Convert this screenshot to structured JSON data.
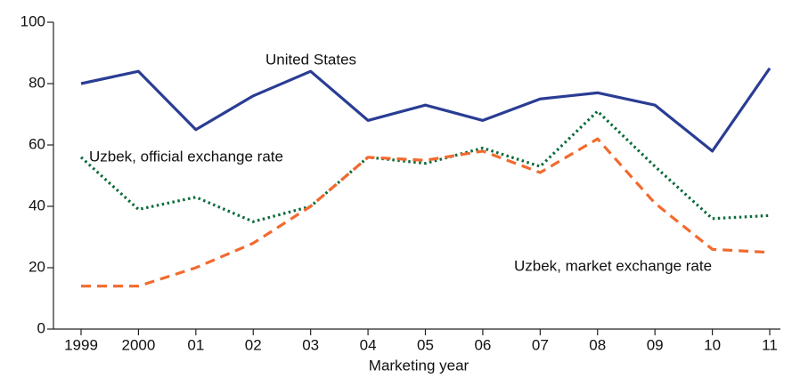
{
  "chart_data": {
    "type": "line",
    "x_label": "Marketing year",
    "categories": [
      "1999",
      "2000",
      "01",
      "02",
      "03",
      "04",
      "05",
      "06",
      "07",
      "08",
      "09",
      "10",
      "11"
    ],
    "series": [
      {
        "name": "United States",
        "color": "#2a3d94",
        "dash": "solid",
        "values": [
          80,
          84,
          65,
          76,
          84,
          68,
          73,
          68,
          75,
          77,
          73,
          58,
          85
        ]
      },
      {
        "name": "Uzbek, official exchange rate",
        "color": "#0b6b3a",
        "dash": "dotted",
        "values": [
          56,
          39,
          43,
          35,
          40,
          56,
          54,
          59,
          53,
          71,
          53,
          36,
          37
        ]
      },
      {
        "name": "Uzbek, market exchange rate",
        "color": "#f26a2e",
        "dash": "dashed",
        "values": [
          14,
          14,
          20,
          28,
          40,
          56,
          55,
          58,
          51,
          62,
          41,
          26,
          25
        ]
      }
    ],
    "ylim": [
      0,
      100
    ],
    "yticks": [
      0,
      20,
      40,
      60,
      80,
      100
    ],
    "grid": false
  }
}
